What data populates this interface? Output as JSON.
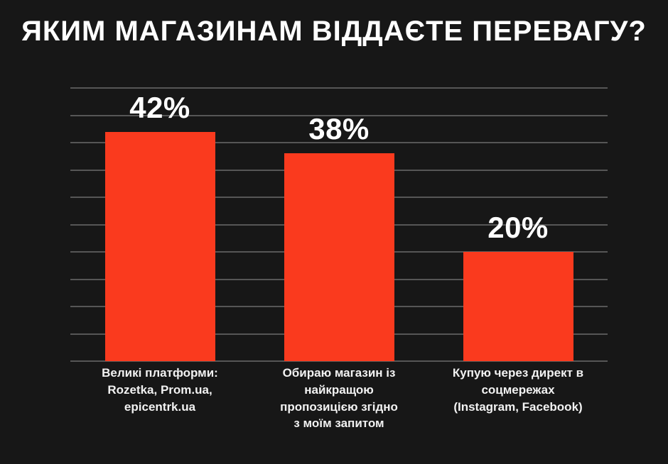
{
  "page": {
    "background_color": "#171717",
    "text_color": "#ffffff"
  },
  "chart_data": {
    "type": "bar",
    "title": "ЯКИМ МАГАЗИНАМ ВІДДАЄТЕ ПЕРЕВАГУ?",
    "categories": [
      "Великі платформи:\nRozetka, Prom.ua,\nepicentrk.ua",
      "Обираю магазин із\nнайкращою\nпропозицією згідно\nз моїм запитом",
      "Купую через директ в\nсоцмережах\n(Instagram, Facebook)"
    ],
    "values": [
      42,
      38,
      20
    ],
    "value_labels": [
      "42%",
      "38%",
      "20%"
    ],
    "xlabel": "",
    "ylabel": "",
    "ylim": [
      0,
      50
    ],
    "grid_step": 5,
    "grid": "on",
    "legend": "none",
    "bar_color": "#fa3a1e",
    "grid_color": "#565656",
    "background": "#171717",
    "label_color": "#f2f2f2",
    "value_label_color": "#ffffff"
  }
}
